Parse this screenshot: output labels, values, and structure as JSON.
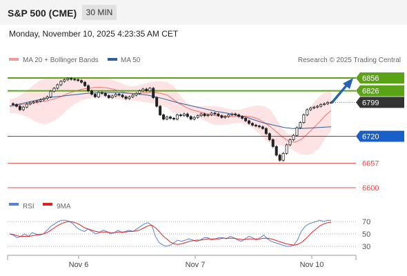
{
  "header": {
    "title": "S&P 500 (CME)",
    "timeframe": "30 MIN"
  },
  "datetime": "Monday, November 10, 2025 4:23:35 AM CET",
  "legend": {
    "bollinger": "MA 20 + Bollinger Bands",
    "ma50": "MA 50",
    "research": "Research © 2025 Trading Central"
  },
  "rsi_legend": {
    "rsi": "RSI",
    "ma9": "9MA"
  },
  "colors": {
    "resistance": "#5aa316",
    "pivot": "#1a5fc8",
    "support": "#e84a4a",
    "current": "#333333",
    "arrow": "#2563ae",
    "bollinger_fill": "#fde3e3",
    "bollinger_mid": "#f07070",
    "ma50": "#2f5e9e",
    "rsi_line": "#5b7fd6",
    "rsi_ma": "#e02020"
  },
  "chart_data": [
    {
      "type": "candlestick",
      "name": "price",
      "x_ticks": [
        "Nov 6",
        "Nov 7",
        "Nov 10"
      ],
      "ylim": [
        6580,
        6880
      ],
      "levels": [
        {
          "value": 6856,
          "label": "6856",
          "kind": "resistance"
        },
        {
          "value": 6826,
          "label": "6826",
          "kind": "resistance"
        },
        {
          "value": 6799,
          "label": "6799",
          "kind": "current"
        },
        {
          "value": 6720,
          "label": "6720",
          "kind": "pivot"
        },
        {
          "value": 6657,
          "label": "6657",
          "kind": "support"
        },
        {
          "value": 6600,
          "label": "6600",
          "kind": "support"
        }
      ],
      "closes": [
        6796,
        6794,
        6790,
        6782,
        6788,
        6795,
        6798,
        6800,
        6802,
        6805,
        6808,
        6812,
        6825,
        6832,
        6840,
        6848,
        6852,
        6855,
        6853,
        6852,
        6850,
        6846,
        6838,
        6826,
        6818,
        6812,
        6822,
        6820,
        6815,
        6810,
        6814,
        6818,
        6816,
        6812,
        6808,
        6812,
        6816,
        6820,
        6826,
        6830,
        6826,
        6832,
        6810,
        6790,
        6770,
        6760,
        6765,
        6762,
        6760,
        6770,
        6768,
        6772,
        6766,
        6760,
        6764,
        6768,
        6772,
        6768,
        6770,
        6774,
        6772,
        6768,
        6764,
        6766,
        6770,
        6772,
        6770,
        6766,
        6762,
        6756,
        6750,
        6746,
        6744,
        6742,
        6738,
        6726,
        6712,
        6696,
        6676,
        6664,
        6680,
        6700,
        6712,
        6722,
        6740,
        6752,
        6770,
        6782,
        6786,
        6788,
        6790,
        6794,
        6796,
        6799,
        6799
      ],
      "bollinger_mid": [
        6790,
        6792,
        6794,
        6796,
        6798,
        6800,
        6802,
        6806,
        6810,
        6816,
        6822,
        6826,
        6830,
        6832,
        6834,
        6834,
        6833,
        6830,
        6826,
        6822,
        6820,
        6820,
        6821,
        6822,
        6822,
        6820,
        6816,
        6806,
        6796,
        6788,
        6782,
        6778,
        6774,
        6770,
        6768,
        6767,
        6766,
        6766,
        6767,
        6767,
        6765,
        6760,
        6752,
        6742,
        6730,
        6718,
        6708,
        6706,
        6712,
        6724,
        6738,
        6752,
        6768,
        6780
      ],
      "bollinger_upper": [
        6806,
        6810,
        6818,
        6828,
        6840,
        6850,
        6856,
        6858,
        6858,
        6857,
        6856,
        6855,
        6855,
        6856,
        6857,
        6857,
        6856,
        6852,
        6846,
        6840,
        6836,
        6838,
        6842,
        6846,
        6848,
        6848,
        6846,
        6838,
        6818,
        6800,
        6792,
        6790,
        6790,
        6790,
        6790,
        6788,
        6784,
        6782,
        6782,
        6786,
        6790,
        6792,
        6790,
        6782,
        6760,
        6738,
        6724,
        6726,
        6746,
        6772,
        6796,
        6812,
        6822,
        6826
      ],
      "bollinger_lower": [
        6774,
        6774,
        6770,
        6764,
        6756,
        6750,
        6748,
        6754,
        6762,
        6775,
        6788,
        6797,
        6805,
        6808,
        6811,
        6811,
        6810,
        6808,
        6806,
        6804,
        6804,
        6802,
        6800,
        6798,
        6796,
        6792,
        6786,
        6774,
        6774,
        6776,
        6772,
        6766,
        6758,
        6750,
        6746,
        6746,
        6748,
        6750,
        6752,
        6748,
        6740,
        6728,
        6714,
        6702,
        6700,
        6698,
        6692,
        6686,
        6678,
        6676,
        6680,
        6692,
        6714,
        6734
      ],
      "ma50": [
        6790,
        6794,
        6798,
        6802,
        6806,
        6810,
        6812,
        6814,
        6816,
        6818,
        6820,
        6821,
        6822,
        6822,
        6822,
        6821,
        6820,
        6818,
        6816,
        6812,
        6808,
        6803,
        6798,
        6794,
        6790,
        6786,
        6782,
        6778,
        6775,
        6772,
        6768,
        6764,
        6758,
        6752,
        6748,
        6744,
        6740,
        6738,
        6738,
        6739,
        6740,
        6741,
        6742
      ]
    },
    {
      "type": "line",
      "name": "rsi",
      "ylim": [
        20,
        78
      ],
      "y_ticks": [
        70,
        50,
        30
      ],
      "rsi": [
        50,
        48,
        44,
        46,
        50,
        46,
        52,
        50,
        48,
        50,
        56,
        62,
        66,
        70,
        72,
        72,
        70,
        66,
        60,
        56,
        54,
        58,
        54,
        50,
        52,
        56,
        54,
        50,
        52,
        56,
        52,
        54,
        56,
        54,
        58,
        62,
        66,
        68,
        64,
        46,
        36,
        32,
        30,
        32,
        36,
        40,
        38,
        40,
        42,
        40,
        38,
        40,
        44,
        44,
        40,
        42,
        44,
        44,
        42,
        46,
        44,
        40,
        38,
        42,
        46,
        44,
        40,
        44,
        48,
        42,
        38,
        36,
        34,
        32,
        30,
        30,
        32,
        40,
        54,
        62,
        66,
        68,
        70,
        72,
        70,
        72,
        72
      ],
      "ma9": [
        50,
        49,
        47,
        46,
        46,
        46,
        47,
        48,
        49,
        50,
        52,
        56,
        60,
        64,
        67,
        69,
        70,
        69,
        67,
        64,
        60,
        58,
        56,
        54,
        53,
        53,
        53,
        52,
        52,
        53,
        53,
        53,
        54,
        54,
        55,
        57,
        60,
        63,
        64,
        60,
        54,
        47,
        42,
        37,
        34,
        33,
        34,
        36,
        38,
        39,
        40,
        40,
        41,
        42,
        42,
        42,
        42,
        43,
        43,
        43,
        43,
        42,
        41,
        41,
        42,
        42,
        42,
        42,
        43,
        43,
        42,
        40,
        38,
        36,
        34,
        33,
        32,
        33,
        36,
        41,
        47,
        53,
        58,
        63,
        66,
        68,
        69
      ]
    }
  ]
}
